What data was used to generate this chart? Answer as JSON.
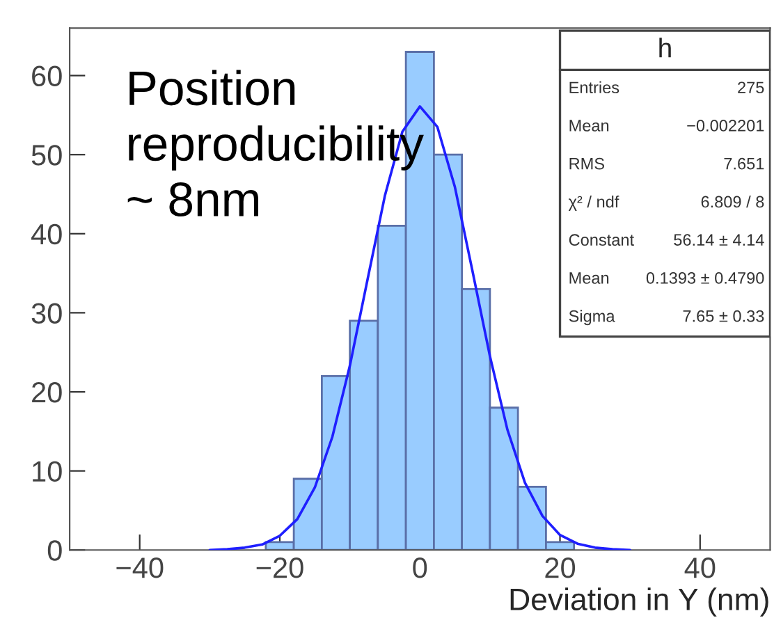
{
  "chart_data": {
    "type": "histogram",
    "xlabel": "Deviation in Y (nm)",
    "bins": [
      -22,
      -18,
      -14,
      -10,
      -6,
      -2,
      2,
      6,
      10,
      14,
      18,
      22
    ],
    "values": [
      1,
      9,
      22,
      29,
      41,
      63,
      50,
      33,
      18,
      8,
      1
    ],
    "color": "#99ccff",
    "series": [
      {
        "type": "line",
        "color": "#1f1fff",
        "x": [
          -30,
          -27.5,
          -25,
          -22.5,
          -20,
          -17.5,
          -15,
          -12.5,
          -10,
          -7.5,
          -5,
          -2.5,
          0,
          2.5,
          5,
          7.5,
          10,
          12.5,
          15,
          17.5,
          20,
          22.5,
          25,
          27.5,
          30
        ],
        "values": [
          0.0,
          0.1,
          0.3,
          0.7,
          1.8,
          3.9,
          7.9,
          14.3,
          23.3,
          34.1,
          44.8,
          52.9,
          56.1,
          53.5,
          45.9,
          35.3,
          24.5,
          15.2,
          8.5,
          4.3,
          1.9,
          0.8,
          0.3,
          0.1,
          0.0
        ]
      }
    ],
    "xlim": [
      -50,
      50
    ],
    "ylim": [
      0,
      66
    ],
    "xticks": [
      -40,
      -20,
      0,
      20,
      40
    ],
    "yticks": [
      0,
      10,
      20,
      30,
      40,
      50,
      60
    ],
    "grid": false,
    "annotations": [
      "Position\nreproducibility\n~ 8nm",
      "h",
      "Entries",
      "275",
      "Mean",
      "−0.002201",
      "RMS",
      "7.651",
      "χ² / ndf",
      "6.809 / 8",
      "Constant",
      "56.14 ± 4.14",
      "Mean",
      "0.1393 ± 0.4790",
      "Sigma",
      "7.65 ± 0.33"
    ]
  }
}
